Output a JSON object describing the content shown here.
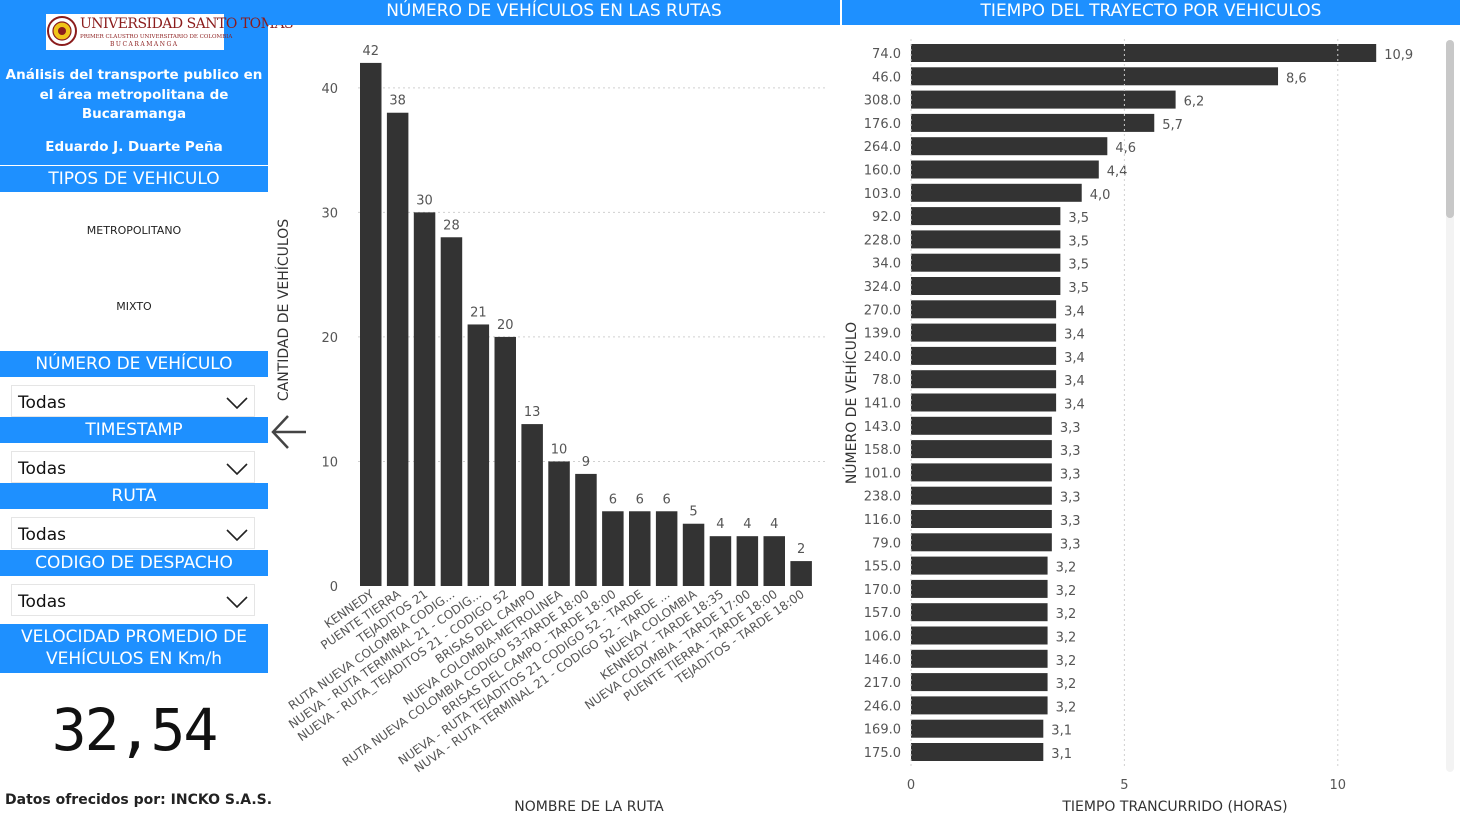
{
  "sidebar": {
    "logo": {
      "name": "UNIVERSIDAD SANTO TOMAS",
      "motto": "PRIMER CLAUSTRO UNIVERSITARIO DE COLOMBIA",
      "city": "BUCARAMANGA"
    },
    "title": "Análisis del transporte publico en el área metropolitana de Bucaramanga",
    "author": "Eduardo J. Duarte Peña",
    "vehicle_types": {
      "header": "TIPOS DE VEHICULO",
      "options": [
        "METROPOLITANO",
        "MIXTO"
      ]
    },
    "filters": [
      {
        "header": "NÚMERO DE VEHÍCULO",
        "value": "Todas"
      },
      {
        "header": "TIMESTAMP",
        "value": "Todas"
      },
      {
        "header": "RUTA",
        "value": "Todas"
      },
      {
        "header": "CODIGO DE DESPACHO",
        "value": "Todas"
      }
    ],
    "velocity": {
      "header": "VELOCIDAD PROMEDIO DE VEHÍCULOS EN Km/h",
      "value": "32,54"
    },
    "footer": "Datos ofrecidos por: INCKO S.A.S."
  },
  "colors": {
    "accent": "#1e90ff",
    "bar": "#333333"
  },
  "icons": {
    "back": "arrow-left-icon",
    "dropdown": "chevron-down-icon"
  },
  "chart_data": [
    {
      "type": "bar",
      "title": "NÚMERO DE VEHÍCULOS EN LAS RUTAS",
      "xlabel": "NOMBRE DE LA RUTA",
      "ylabel": "CANTIDAD DE VEHÍCULOS",
      "ylim": [
        0,
        44
      ],
      "yticks": [
        0,
        10,
        20,
        30,
        40
      ],
      "grid": true,
      "categories": [
        "KENNEDY",
        "PUENTE TIERRA",
        "TEJADITOS 21",
        "RUTA NUEVA COLOMBIA CODIG...",
        "NUEVA - RUTA TERMINAL 21 - CODIG...",
        "NUEVA - RUTA_TEJADITOS 21 - CODIGO 52",
        "BRISAS DEL CAMPO",
        "NUEVA COLOMBIA-METROLINEA",
        "RUTA NUEVA COLOMBIA CODIGO 53-TARDE 18:00",
        "BRISAS DEL CAMPO - TARDE 18:00",
        "NUEVA - RUTA TEJADITOS 21 CODIGO 52 - TARDE",
        "NUVA - RUTA TERMINAL 21 - CODIGO 52 - TARDE ...",
        "NUEVA COLOMBIA",
        "KENNEDY - TARDE 18:35",
        "NUEVA COLOMBIA - TARDE 17:00",
        "PUENTE TIERRA - TARDE 18:00",
        "TEJADITOS - TARDE 18:00"
      ],
      "values": [
        42,
        38,
        30,
        28,
        21,
        20,
        13,
        10,
        9,
        6,
        6,
        6,
        5,
        4,
        4,
        4,
        2
      ]
    },
    {
      "type": "bar",
      "orientation": "horizontal",
      "title": "TIEMPO DEL TRAYECTO POR VEHICULOS",
      "xlabel": "TIEMPO TRANCURRIDO (HORAS)",
      "ylabel": "NÚMERO DE VEHÍCULO",
      "xlim": [
        0,
        11.2
      ],
      "xticks": [
        0,
        5,
        10
      ],
      "categories": [
        "74.0",
        "46.0",
        "308.0",
        "176.0",
        "264.0",
        "160.0",
        "103.0",
        "92.0",
        "228.0",
        "34.0",
        "324.0",
        "270.0",
        "139.0",
        "240.0",
        "78.0",
        "141.0",
        "143.0",
        "158.0",
        "101.0",
        "238.0",
        "116.0",
        "79.0",
        "155.0",
        "170.0",
        "157.0",
        "106.0",
        "146.0",
        "217.0",
        "246.0",
        "169.0",
        "175.0"
      ],
      "values": [
        10.9,
        8.6,
        6.2,
        5.7,
        4.6,
        4.4,
        4.0,
        3.5,
        3.5,
        3.5,
        3.5,
        3.4,
        3.4,
        3.4,
        3.4,
        3.4,
        3.3,
        3.3,
        3.3,
        3.3,
        3.3,
        3.3,
        3.2,
        3.2,
        3.2,
        3.2,
        3.2,
        3.2,
        3.2,
        3.1,
        3.1
      ],
      "labels": [
        "10,9",
        "8,6",
        "6,2",
        "5,7",
        "4,6",
        "4,4",
        "4,0",
        "3,5",
        "3,5",
        "3,5",
        "3,5",
        "3,4",
        "3,4",
        "3,4",
        "3,4",
        "3,4",
        "3,3",
        "3,3",
        "3,3",
        "3,3",
        "3,3",
        "3,3",
        "3,2",
        "3,2",
        "3,2",
        "3,2",
        "3,2",
        "3,2",
        "3,2",
        "3,1",
        "3,1"
      ]
    }
  ]
}
